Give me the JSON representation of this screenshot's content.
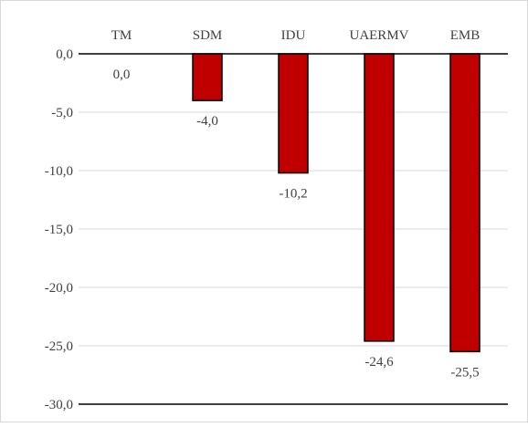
{
  "chart_data": {
    "type": "bar",
    "categories": [
      "TM",
      "SDM",
      "IDU",
      "UAERMV",
      "EMB"
    ],
    "values": [
      0.0,
      -4.0,
      -10.2,
      -24.6,
      -25.5
    ],
    "value_labels": [
      "0,0",
      "-4,0",
      "-10,2",
      "-24,6",
      "-25,5"
    ],
    "title": "",
    "xlabel": "",
    "ylabel": "",
    "ylim": [
      -30,
      0
    ],
    "yticks": [
      0,
      -5,
      -10,
      -15,
      -20,
      -25,
      -30
    ],
    "ytick_labels": [
      "0,0",
      "-5,0",
      "-10,0",
      "-15,0",
      "-20,0",
      "-25,0",
      "-30,0"
    ],
    "category_axis_position": "top",
    "grid": true,
    "legend": "none",
    "colors": {
      "bar_fill": "#C00000",
      "bar_stroke": "#000000",
      "grid": "#D9D9D9",
      "axis": "#000000",
      "text": "#404040",
      "frame": "#D9D9D9"
    }
  }
}
